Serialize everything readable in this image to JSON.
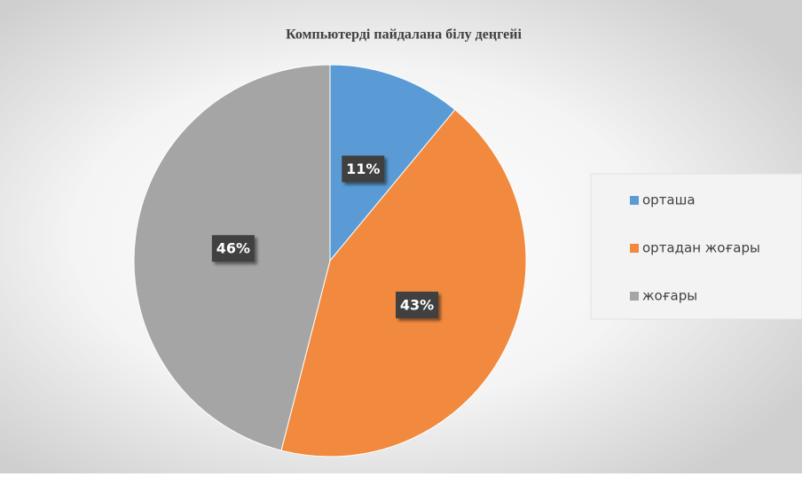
{
  "chart_data": {
    "type": "pie",
    "title": "Компьютерді пайдалана білу деңгейі",
    "categories": [
      "орташа",
      "ортадан жоғары",
      "жоғары"
    ],
    "values": [
      11,
      43,
      46
    ],
    "value_labels": [
      "11%",
      "43%",
      "46%"
    ],
    "colors": [
      "#5b9bd5",
      "#f18a3e",
      "#a5a5a5"
    ],
    "legend": "right"
  }
}
